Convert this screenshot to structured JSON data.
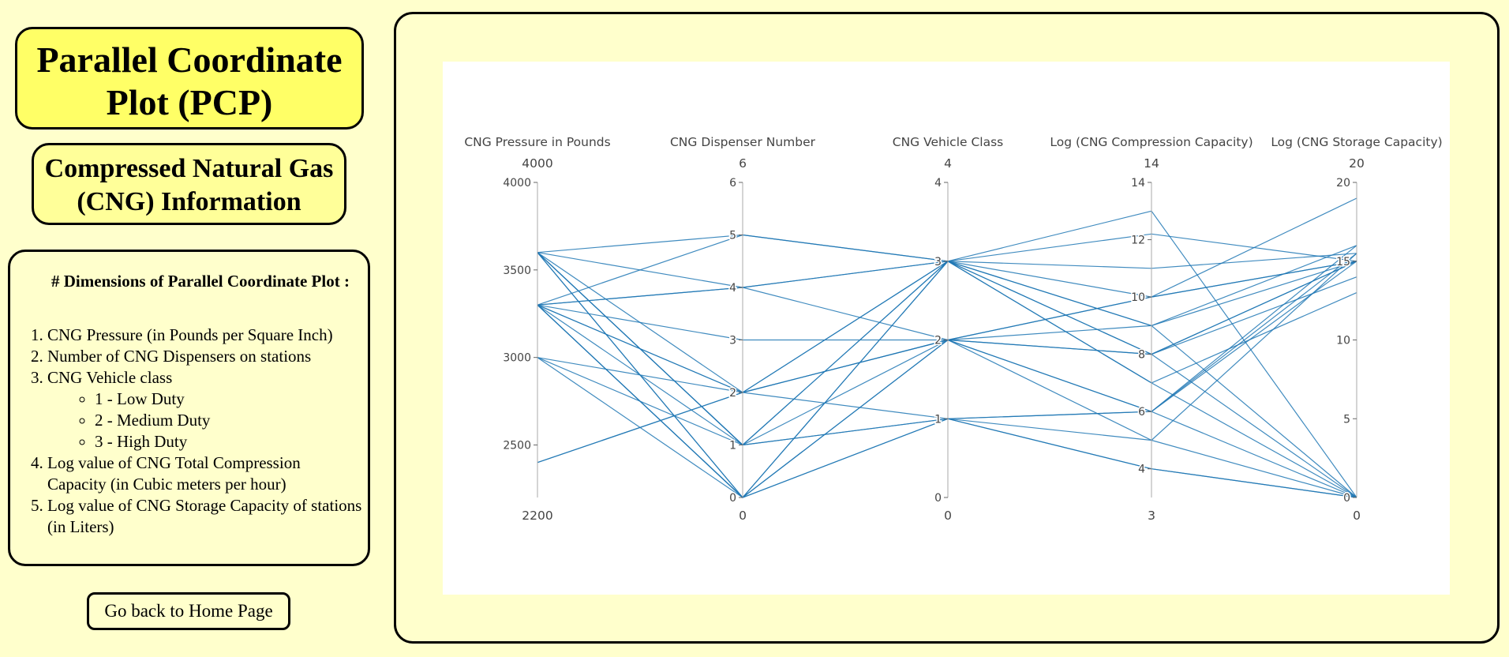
{
  "title": "Parallel Coordinate Plot (PCP)",
  "subtitle": "Compressed Natural Gas (CNG) Information",
  "info": {
    "heading": "# Dimensions of Parallel Coordinate Plot :",
    "items": [
      "CNG Pressure (in Pounds per Square Inch)",
      "Number of CNG Dispensers on stations",
      "CNG Vehicle class",
      "Log value of CNG Total Compression Capacity (in Cubic meters per hour)",
      "Log value of CNG Storage Capacity of stations (in Liters)"
    ],
    "subitems": [
      "1 - Low Duty",
      "2 - Medium Duty",
      "3 - High Duty"
    ]
  },
  "home_button": "Go back to Home Page",
  "colors": {
    "line": "#1f77b4",
    "panel_bg": "#ffffcc",
    "title_bg": "#ffff66",
    "subtitle_bg": "#ffff99"
  },
  "chart_data": {
    "type": "parallel_coordinates",
    "dimensions": [
      {
        "name": "CNG Pressure in Pounds",
        "range": [
          2200,
          4000
        ],
        "ticks": [
          2500,
          3000,
          3500,
          4000
        ]
      },
      {
        "name": "CNG Dispenser Number",
        "range": [
          0,
          6
        ],
        "ticks": [
          0,
          1,
          2,
          3,
          4,
          5,
          6
        ]
      },
      {
        "name": "CNG Vehicle Class",
        "range": [
          0,
          4
        ],
        "ticks": [
          0,
          1,
          2,
          3,
          4
        ]
      },
      {
        "name": "Log (CNG Compression Capacity)",
        "range": [
          3,
          14
        ],
        "ticks": [
          4,
          6,
          8,
          10,
          12,
          14
        ]
      },
      {
        "name": "Log (CNG Storage Capacity)",
        "range": [
          0,
          20
        ],
        "ticks": [
          0,
          5,
          10,
          15,
          20
        ]
      }
    ],
    "records": [
      [
        3600,
        5,
        3,
        12.2,
        15
      ],
      [
        3600,
        4,
        3,
        11,
        15.5
      ],
      [
        3600,
        2,
        2,
        10,
        15
      ],
      [
        3600,
        1,
        2,
        9,
        16
      ],
      [
        3600,
        1,
        3,
        8,
        0
      ],
      [
        3600,
        0,
        1,
        6,
        0
      ],
      [
        3600,
        0,
        3,
        7,
        0
      ],
      [
        3600,
        1,
        3,
        10,
        15
      ],
      [
        3300,
        5,
        3,
        13,
        0
      ],
      [
        3300,
        4,
        3,
        9,
        15
      ],
      [
        3300,
        4,
        2,
        8,
        15
      ],
      [
        3300,
        3,
        2,
        6,
        15
      ],
      [
        3300,
        2,
        2,
        8,
        14
      ],
      [
        3300,
        0,
        2,
        5,
        15.5
      ],
      [
        3300,
        1,
        1,
        4,
        0
      ],
      [
        3300,
        0,
        1,
        5,
        0
      ],
      [
        3300,
        2,
        3,
        9,
        0
      ],
      [
        3300,
        0,
        3,
        8,
        15
      ],
      [
        3000,
        2,
        1,
        6,
        16
      ],
      [
        3000,
        1,
        1,
        4,
        0
      ],
      [
        3000,
        0,
        2,
        6,
        15.5
      ],
      [
        2400,
        2,
        2,
        10,
        19
      ],
      [
        2400,
        2,
        3,
        7,
        13
      ]
    ]
  }
}
